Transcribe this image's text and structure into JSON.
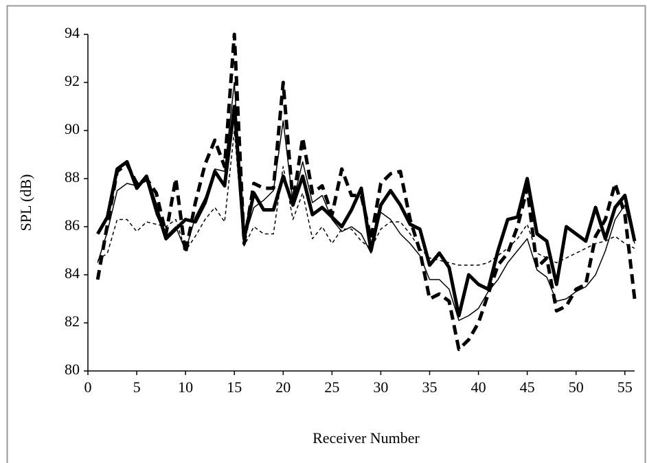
{
  "chart_data": {
    "type": "line",
    "x_label": "Receiver Number",
    "y_label": "SPL (dB)",
    "x": [
      1,
      2,
      3,
      4,
      5,
      6,
      7,
      8,
      9,
      10,
      11,
      12,
      13,
      14,
      15,
      16,
      17,
      18,
      19,
      20,
      21,
      22,
      23,
      24,
      25,
      26,
      27,
      28,
      29,
      30,
      31,
      32,
      33,
      34,
      35,
      36,
      37,
      38,
      39,
      40,
      41,
      42,
      43,
      44,
      45,
      46,
      47,
      48,
      49,
      50,
      51,
      52,
      53,
      54,
      55,
      56
    ],
    "series": [
      {
        "color": "#000000",
        "line_style": "solid",
        "line_width": "thick",
        "values": [
          85.7,
          86.4,
          88.4,
          88.7,
          87.6,
          88.1,
          86.8,
          85.5,
          85.9,
          86.3,
          86.2,
          87.0,
          88.3,
          87.7,
          91.0,
          85.5,
          87.4,
          86.7,
          86.7,
          88.1,
          86.9,
          88.1,
          86.5,
          86.8,
          86.4,
          86.0,
          86.7,
          87.6,
          85.0,
          86.9,
          87.5,
          86.9,
          86.1,
          85.9,
          84.4,
          84.9,
          84.3,
          82.3,
          84.0,
          83.6,
          83.4,
          85.0,
          86.3,
          86.4,
          88.0,
          85.7,
          85.4,
          83.6,
          86.0,
          85.7,
          85.4,
          86.8,
          85.5,
          86.8,
          87.3,
          85.4
        ]
      },
      {
        "color": "#000000",
        "line_style": "solid",
        "line_width": "thin",
        "values": [
          84.5,
          85.8,
          87.5,
          87.8,
          87.7,
          87.9,
          86.5,
          85.6,
          86.0,
          85.0,
          86.4,
          87.2,
          88.4,
          88.3,
          92.0,
          85.5,
          86.8,
          87.1,
          87.5,
          90.4,
          87.0,
          88.7,
          87.0,
          87.3,
          86.3,
          85.8,
          86.0,
          85.7,
          84.9,
          86.6,
          86.3,
          85.7,
          85.3,
          84.8,
          83.8,
          83.8,
          83.4,
          82.1,
          82.3,
          82.6,
          83.3,
          83.8,
          84.5,
          85.0,
          85.5,
          84.2,
          83.9,
          82.9,
          83.0,
          83.3,
          83.5,
          84.0,
          85.0,
          86.3,
          86.9,
          85.3
        ]
      },
      {
        "color": "#000000",
        "line_style": "dashed",
        "line_width": "thick",
        "values": [
          83.8,
          86.1,
          88.3,
          88.6,
          87.8,
          88.0,
          87.4,
          85.7,
          88.0,
          84.9,
          87.0,
          88.6,
          89.6,
          88.5,
          94.0,
          85.3,
          87.8,
          87.6,
          87.6,
          92.0,
          87.0,
          89.7,
          87.4,
          87.7,
          86.5,
          88.4,
          87.3,
          87.3,
          85.5,
          87.8,
          88.2,
          88.3,
          86.3,
          85.0,
          83.0,
          83.2,
          82.9,
          80.9,
          81.3,
          82.0,
          83.2,
          84.4,
          84.9,
          86.0,
          87.6,
          84.3,
          84.7,
          82.5,
          82.7,
          83.4,
          83.6,
          85.6,
          86.3,
          87.8,
          86.5,
          83.0
        ]
      },
      {
        "color": "#000000",
        "line_style": "dashed",
        "line_width": "thin",
        "values": [
          84.6,
          84.9,
          86.3,
          86.3,
          85.8,
          86.2,
          86.1,
          86.0,
          86.3,
          85.0,
          85.6,
          86.3,
          86.8,
          86.2,
          90.0,
          85.2,
          86.0,
          85.7,
          85.7,
          88.5,
          86.3,
          87.4,
          85.5,
          86.0,
          85.3,
          85.9,
          85.9,
          85.4,
          85.1,
          85.9,
          86.2,
          86.2,
          85.7,
          85.1,
          84.7,
          84.6,
          84.5,
          84.4,
          84.4,
          84.4,
          84.5,
          84.8,
          85.1,
          85.5,
          86.1,
          84.9,
          84.7,
          84.5,
          84.7,
          84.9,
          85.1,
          85.3,
          85.4,
          85.6,
          85.3,
          85.1
        ]
      }
    ],
    "xlim": [
      0,
      56
    ],
    "xticks": [
      0,
      5,
      10,
      15,
      20,
      25,
      30,
      35,
      40,
      45,
      50,
      55
    ],
    "ylim": [
      80,
      94
    ],
    "yticks": [
      80,
      82,
      84,
      86,
      88,
      90,
      92,
      94
    ],
    "grid": false
  }
}
